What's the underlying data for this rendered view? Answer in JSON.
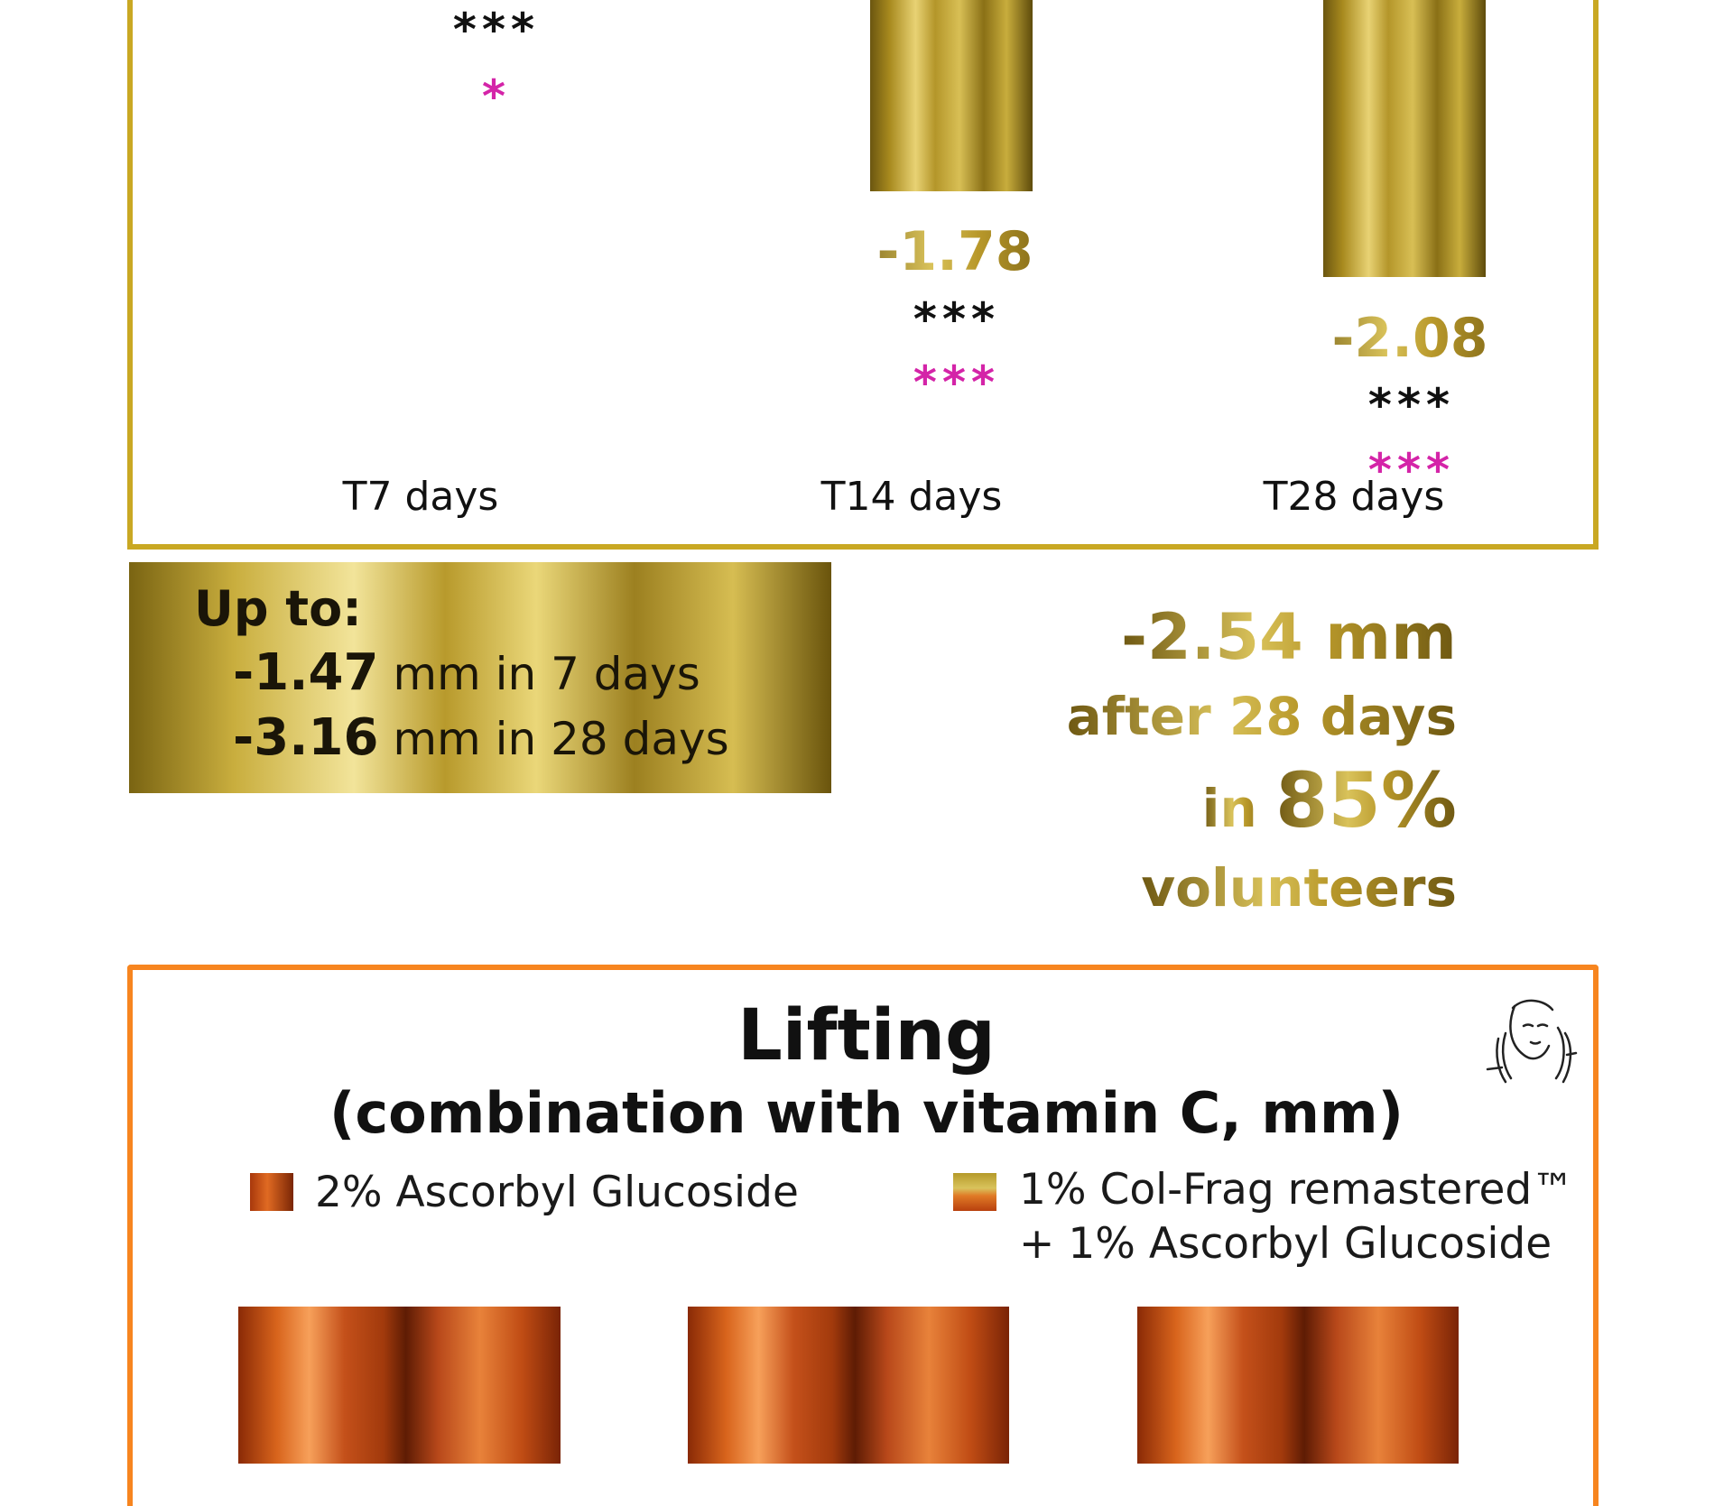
{
  "top_chart": {
    "categories": [
      "T7 days",
      "T14 days",
      "T28 days"
    ],
    "values": [
      "",
      "-1.78",
      "-2.08"
    ],
    "significance_black": [
      "***",
      "***",
      "***"
    ],
    "significance_pink": [
      "*",
      "***",
      "***"
    ]
  },
  "upto": {
    "heading": "Up to:",
    "line1_value": "-1.47",
    "line1_text": " mm in 7 days",
    "line2_value": "-3.16",
    "line2_text": " mm in 28 days"
  },
  "stat": {
    "value": "-2.54 mm",
    "line2": "after 28 days",
    "line3_prefix": "in ",
    "line3_value": "85%",
    "line4": "volunteers"
  },
  "lifting": {
    "title": "Lifting",
    "subtitle": "(combination with vitamin C, mm)",
    "legend": {
      "item1": "2% Ascorbyl Glucoside",
      "item2_line1": "1% Col-Frag remastered™",
      "item2_line2": "+ 1% Ascorbyl Glucoside"
    },
    "icon": "face-lift-icon"
  },
  "colors": {
    "gold": "#c9a823",
    "orange_border": "#f7851f",
    "pink_stars": "#d424a8",
    "copper": "#d8641c"
  },
  "chart_data": [
    {
      "type": "bar",
      "categories": [
        "T7 days",
        "T14 days",
        "T28 days"
      ],
      "series": [
        {
          "values": [
            null,
            -1.78,
            -2.08
          ]
        }
      ],
      "annotations": {
        "black_stars": [
          "***",
          "***",
          "***"
        ],
        "pink_stars": [
          "*",
          "***",
          "***"
        ]
      }
    },
    {
      "type": "bar",
      "title": "Lifting",
      "subtitle": "(combination with vitamin C, mm)",
      "legend": [
        "2% Ascorbyl Glucoside",
        "1% Col-Frag remastered™ + 1% Ascorbyl Glucoside"
      ],
      "categories": [
        "",
        "",
        ""
      ]
    }
  ]
}
